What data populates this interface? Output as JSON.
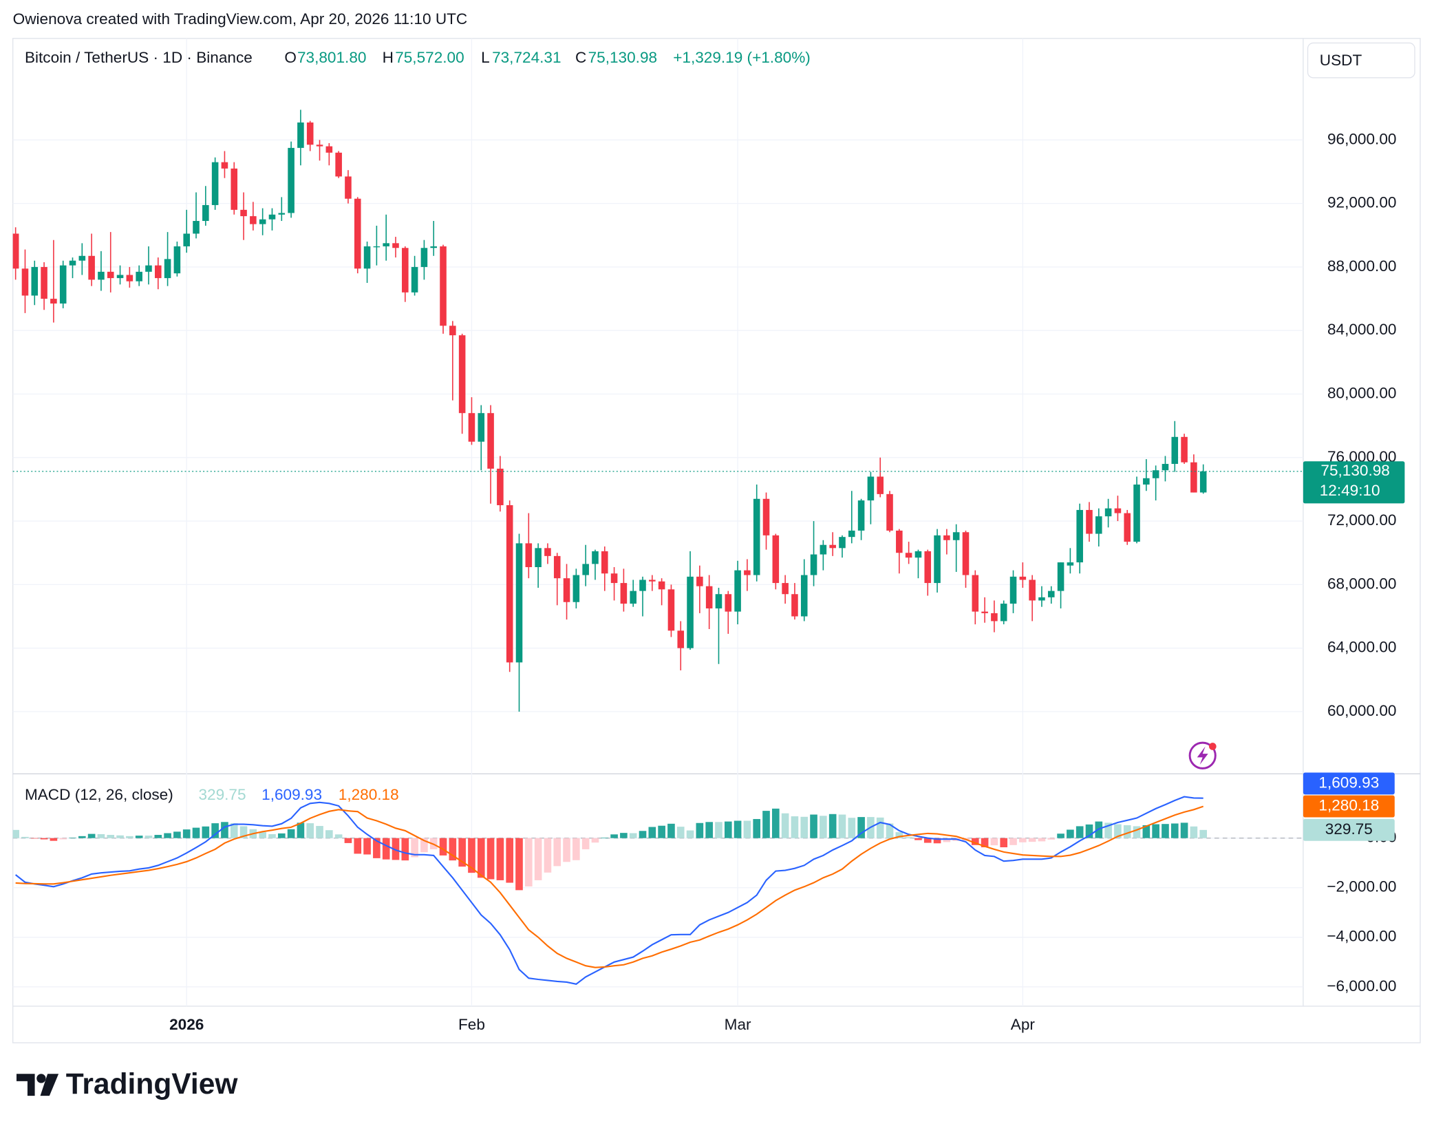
{
  "watermark": "Owienova created with TradingView.com, Apr 20, 2026 11:10 UTC",
  "logo": "TradingView",
  "chart_data": [
    {
      "type": "candlestick",
      "title": "Bitcoin / TetherUS · 1D · Binance",
      "currency": "USDT",
      "legend": [
        {
          "key": "O",
          "value": "73,801.80"
        },
        {
          "key": "H",
          "value": "75,572.00"
        },
        {
          "key": "L",
          "value": "73,724.31"
        },
        {
          "key": "C",
          "value": "75,130.98"
        }
      ],
      "change": "+1,329.19 (+1.80%)",
      "last_price_label": "75,130.98",
      "countdown": "12:49:10",
      "colors": {
        "up": "#089981",
        "down": "#f23645"
      },
      "grid": true,
      "categories": [
        null,
        null,
        null,
        null,
        null,
        null,
        null,
        null,
        null,
        null,
        null,
        null,
        null,
        null,
        null,
        null,
        null,
        null,
        "2026",
        null,
        null,
        null,
        null,
        null,
        null,
        null,
        null,
        null,
        null,
        null,
        null,
        null,
        null,
        null,
        null,
        null,
        null,
        null,
        null,
        null,
        null,
        null,
        null,
        null,
        null,
        null,
        null,
        null,
        "Feb",
        null,
        null,
        null,
        null,
        null,
        null,
        null,
        null,
        null,
        null,
        null,
        null,
        null,
        null,
        null,
        null,
        null,
        null,
        null,
        null,
        null,
        null,
        null,
        null,
        null,
        null,
        null,
        "Mar",
        null,
        null,
        null,
        null,
        null,
        null,
        null,
        null,
        null,
        null,
        null,
        null,
        null,
        null,
        null,
        null,
        null,
        null,
        null,
        null,
        null,
        null,
        null,
        null,
        null,
        null,
        null,
        null,
        null,
        "Apr",
        null,
        null,
        null,
        null,
        null,
        null,
        null,
        null,
        null,
        null,
        null,
        null,
        null,
        null,
        null,
        null,
        null,
        null,
        null
      ],
      "open": [
        90100,
        87900,
        86200,
        88000,
        86000,
        85700,
        88100,
        88400,
        88700,
        87200,
        87700,
        87300,
        87500,
        87100,
        87700,
        88100,
        87300,
        87600,
        89300,
        90100,
        90900,
        91900,
        94600,
        94200,
        91600,
        91200,
        90700,
        91000,
        91300,
        91400,
        95500,
        97100,
        95700,
        95600,
        95200,
        93700,
        92300,
        87900,
        89300,
        89300,
        89500,
        89200,
        86400,
        88000,
        89200,
        89300,
        84300,
        83700,
        78800,
        77000,
        78800,
        75300,
        73000,
        63100,
        70600,
        69100,
        70300,
        69800,
        68400,
        66900,
        68600,
        69300,
        70100,
        68700,
        68100,
        66800,
        67600,
        68300,
        68200,
        67700,
        65100,
        64000,
        68500,
        67900,
        66500,
        67400,
        66300,
        68900,
        68600,
        73400,
        71100,
        68100,
        67400,
        66000,
        68600,
        69900,
        70500,
        70300,
        71000,
        71400,
        73300,
        74800,
        73700,
        71400,
        70000,
        69700,
        70100,
        68100,
        71100,
        70800,
        71300,
        68600,
        66300,
        66200,
        65700,
        66800,
        68500,
        68300,
        67000,
        67200,
        67600,
        69200,
        69400,
        72700,
        71200,
        72300,
        72800,
        72500,
        70700,
        74300,
        74700,
        75200,
        75600,
        77300,
        75700,
        73801.8
      ],
      "high": [
        90500,
        89100,
        88400,
        88300,
        89700,
        88400,
        88600,
        89500,
        90100,
        89000,
        90200,
        88100,
        88000,
        88100,
        89300,
        88600,
        90200,
        89600,
        91600,
        92700,
        93100,
        94900,
        95300,
        94600,
        92700,
        92100,
        91700,
        91700,
        92400,
        95900,
        97900,
        97200,
        96000,
        95800,
        95300,
        94100,
        92400,
        89600,
        90600,
        91300,
        89900,
        89300,
        88700,
        89700,
        90900,
        89400,
        84600,
        83800,
        79800,
        79300,
        79300,
        76100,
        73300,
        71200,
        72500,
        70600,
        70600,
        70000,
        69300,
        69000,
        70500,
        70200,
        70400,
        69100,
        69000,
        68300,
        68500,
        68600,
        68400,
        68000,
        65700,
        70100,
        69200,
        68600,
        67800,
        67600,
        69500,
        69600,
        74300,
        73800,
        71200,
        68600,
        68100,
        69600,
        72000,
        70800,
        71300,
        71100,
        73900,
        73400,
        75100,
        76000,
        73900,
        71500,
        70700,
        70200,
        70200,
        71500,
        71500,
        71800,
        71400,
        68900,
        67200,
        67000,
        67000,
        68900,
        69400,
        68600,
        67900,
        67900,
        69400,
        70300,
        73100,
        73200,
        72800,
        73400,
        73600,
        72700,
        74800,
        75900,
        75500,
        76100,
        78300,
        77500,
        76200,
        75572
      ],
      "low": [
        87200,
        85100,
        85600,
        85300,
        84500,
        85400,
        87300,
        87500,
        86800,
        86500,
        86400,
        86900,
        86700,
        86800,
        86900,
        86600,
        86800,
        87400,
        88900,
        89800,
        90600,
        91600,
        93600,
        91300,
        89700,
        90300,
        90000,
        90300,
        90900,
        91100,
        94400,
        95300,
        94700,
        94400,
        93600,
        92000,
        87600,
        87000,
        88100,
        88400,
        88600,
        85800,
        86200,
        87200,
        88700,
        83800,
        79600,
        77500,
        76800,
        75200,
        73100,
        72600,
        62500,
        60000,
        68400,
        67800,
        69300,
        66700,
        65800,
        66500,
        67900,
        68300,
        67600,
        67000,
        66300,
        66600,
        66000,
        67600,
        66700,
        64700,
        62600,
        63900,
        66200,
        65200,
        63000,
        64900,
        65500,
        67600,
        68200,
        70200,
        67700,
        66800,
        65800,
        65700,
        67900,
        68900,
        69800,
        69700,
        70600,
        70800,
        71800,
        73500,
        71300,
        68700,
        69300,
        68400,
        67300,
        67500,
        69900,
        68800,
        67800,
        65500,
        65600,
        65000,
        65500,
        66200,
        67800,
        65700,
        66600,
        66800,
        66500,
        68700,
        68700,
        70700,
        70400,
        71600,
        72000,
        70500,
        70600,
        73900,
        73300,
        74500,
        75100,
        75600,
        73800,
        73724.31
      ],
      "close": [
        87900,
        86200,
        88000,
        86000,
        85700,
        88100,
        88400,
        88700,
        87200,
        87700,
        87300,
        87500,
        87100,
        87700,
        88100,
        87300,
        88500,
        89300,
        90100,
        90900,
        91900,
        94600,
        94200,
        91600,
        91200,
        90700,
        91000,
        91300,
        91400,
        95500,
        97100,
        95700,
        95600,
        95200,
        93700,
        92300,
        87900,
        89300,
        89300,
        89500,
        89200,
        86400,
        88000,
        89200,
        89300,
        84300,
        83700,
        78800,
        77000,
        78800,
        75300,
        73000,
        63100,
        70600,
        69100,
        70300,
        69800,
        68400,
        66900,
        68600,
        69300,
        70100,
        68700,
        68100,
        66800,
        67600,
        68300,
        68200,
        67700,
        65100,
        64000,
        68500,
        67900,
        66500,
        67400,
        66300,
        68900,
        68600,
        73400,
        71100,
        68100,
        67400,
        66000,
        68600,
        69900,
        70500,
        70300,
        71000,
        71400,
        73300,
        74800,
        73700,
        71400,
        70000,
        69700,
        70100,
        68100,
        71100,
        70800,
        71300,
        68600,
        66300,
        66200,
        65700,
        66800,
        68500,
        68300,
        67000,
        67200,
        67600,
        69400,
        69400,
        72700,
        71200,
        72300,
        72800,
        72500,
        70700,
        74300,
        74700,
        75200,
        75600,
        77300,
        75700,
        73800,
        75130.98
      ],
      "ylim": [
        56141,
        102394
      ],
      "yticks": [
        {
          "value": 60000,
          "label": "60,000.00"
        },
        {
          "value": 64000,
          "label": "64,000.00"
        },
        {
          "value": 68000,
          "label": "68,000.00"
        },
        {
          "value": 72000,
          "label": "72,000.00"
        },
        {
          "value": 76000,
          "label": "76,000.00"
        },
        {
          "value": 80000,
          "label": "80,000.00"
        },
        {
          "value": 84000,
          "label": "84,000.00"
        },
        {
          "value": 88000,
          "label": "88,000.00"
        },
        {
          "value": 92000,
          "label": "92,000.00"
        },
        {
          "value": 96000,
          "label": "96,000.00"
        }
      ]
    },
    {
      "type": "macd",
      "title": "MACD (12, 26, close)",
      "ylim": [
        -6780,
        2556
      ],
      "yticks": [
        {
          "value": -6000,
          "label": "−6,000.00"
        },
        {
          "value": -4000,
          "label": "−4,000.00"
        },
        {
          "value": -2000,
          "label": "−2,000.00"
        },
        {
          "value": 0,
          "label": "0.00"
        }
      ],
      "series": [
        {
          "kind": "histogram",
          "value_label": "329.75",
          "colors": {
            "up_rising": "#26a69a",
            "up_falling": "#b2dfdb",
            "down_falling": "#ff5252",
            "down_rising": "#ffcdd2"
          },
          "values": [
            330,
            50,
            -10,
            -50,
            -110,
            -50,
            20,
            80,
            170,
            160,
            130,
            110,
            80,
            100,
            100,
            130,
            200,
            260,
            350,
            420,
            470,
            600,
            650,
            600,
            480,
            360,
            240,
            160,
            190,
            360,
            620,
            600,
            490,
            320,
            150,
            -200,
            -630,
            -660,
            -810,
            -860,
            -880,
            -900,
            -770,
            -570,
            -450,
            -700,
            -900,
            -1150,
            -1400,
            -1600,
            -1660,
            -1700,
            -1800,
            -2100,
            -1950,
            -1700,
            -1390,
            -1130,
            -960,
            -890,
            -450,
            -180,
            20,
            150,
            210,
            200,
            290,
            450,
            500,
            580,
            460,
            310,
            610,
            650,
            650,
            670,
            700,
            700,
            770,
            1100,
            1190,
            1000,
            880,
            860,
            950,
            900,
            970,
            950,
            820,
            850,
            850,
            830,
            590,
            240,
            40,
            -80,
            -190,
            -210,
            -160,
            -110,
            -100,
            -280,
            -370,
            -290,
            -370,
            -280,
            -170,
            -150,
            -130,
            -60,
            180,
            340,
            480,
            550,
            670,
            620,
            560,
            520,
            480,
            520,
            560,
            570,
            590,
            620,
            470,
            329.75
          ]
        },
        {
          "kind": "line",
          "color": "#2962ff",
          "value_label": "1,609.93",
          "values": [
            -1480,
            -1780,
            -1850,
            -1900,
            -1960,
            -1850,
            -1720,
            -1600,
            -1450,
            -1400,
            -1370,
            -1340,
            -1320,
            -1250,
            -1200,
            -1100,
            -950,
            -800,
            -600,
            -380,
            -150,
            150,
            450,
            560,
            560,
            540,
            500,
            480,
            580,
            800,
            1220,
            1400,
            1440,
            1400,
            1300,
            900,
            440,
            150,
            -110,
            -300,
            -480,
            -600,
            -670,
            -670,
            -700,
            -1150,
            -1600,
            -2100,
            -2600,
            -3100,
            -3440,
            -3900,
            -4500,
            -5300,
            -5650,
            -5700,
            -5740,
            -5780,
            -5810,
            -5890,
            -5600,
            -5400,
            -5200,
            -5000,
            -4900,
            -4800,
            -4560,
            -4300,
            -4100,
            -3900,
            -3890,
            -3890,
            -3500,
            -3300,
            -3150,
            -3000,
            -2800,
            -2600,
            -2300,
            -1700,
            -1330,
            -1300,
            -1220,
            -1100,
            -850,
            -700,
            -480,
            -300,
            -110,
            200,
            440,
            630,
            550,
            300,
            150,
            70,
            0,
            -40,
            -40,
            -40,
            -150,
            -480,
            -700,
            -740,
            -930,
            -900,
            -850,
            -850,
            -850,
            -800,
            -560,
            -350,
            -110,
            100,
            370,
            500,
            630,
            720,
            810,
            1000,
            1190,
            1350,
            1520,
            1670,
            1620,
            1609.93
          ]
        },
        {
          "kind": "line",
          "color": "#ff6d00",
          "value_label": "1,280.18",
          "values": [
            -1810,
            -1830,
            -1840,
            -1850,
            -1850,
            -1800,
            -1740,
            -1680,
            -1620,
            -1560,
            -1500,
            -1450,
            -1400,
            -1350,
            -1300,
            -1230,
            -1150,
            -1060,
            -950,
            -800,
            -620,
            -450,
            -200,
            -40,
            80,
            180,
            260,
            320,
            390,
            440,
            600,
            800,
            950,
            1080,
            1150,
            1100,
            1070,
            810,
            700,
            560,
            400,
            300,
            100,
            -100,
            -250,
            -450,
            -700,
            -950,
            -1200,
            -1500,
            -1780,
            -2200,
            -2700,
            -3200,
            -3700,
            -4000,
            -4350,
            -4650,
            -4850,
            -5000,
            -5150,
            -5220,
            -5200,
            -5150,
            -5110,
            -5000,
            -4850,
            -4750,
            -4600,
            -4480,
            -4350,
            -4200,
            -4110,
            -3950,
            -3800,
            -3670,
            -3500,
            -3300,
            -3070,
            -2800,
            -2520,
            -2300,
            -2100,
            -1960,
            -1800,
            -1600,
            -1450,
            -1250,
            -930,
            -650,
            -410,
            -200,
            -40,
            60,
            110,
            150,
            190,
            170,
            120,
            70,
            -50,
            -200,
            -330,
            -450,
            -560,
            -620,
            -680,
            -700,
            -720,
            -740,
            -740,
            -690,
            -590,
            -450,
            -300,
            -120,
            70,
            200,
            330,
            480,
            630,
            780,
            930,
            1050,
            1150,
            1280.18
          ]
        }
      ]
    }
  ]
}
